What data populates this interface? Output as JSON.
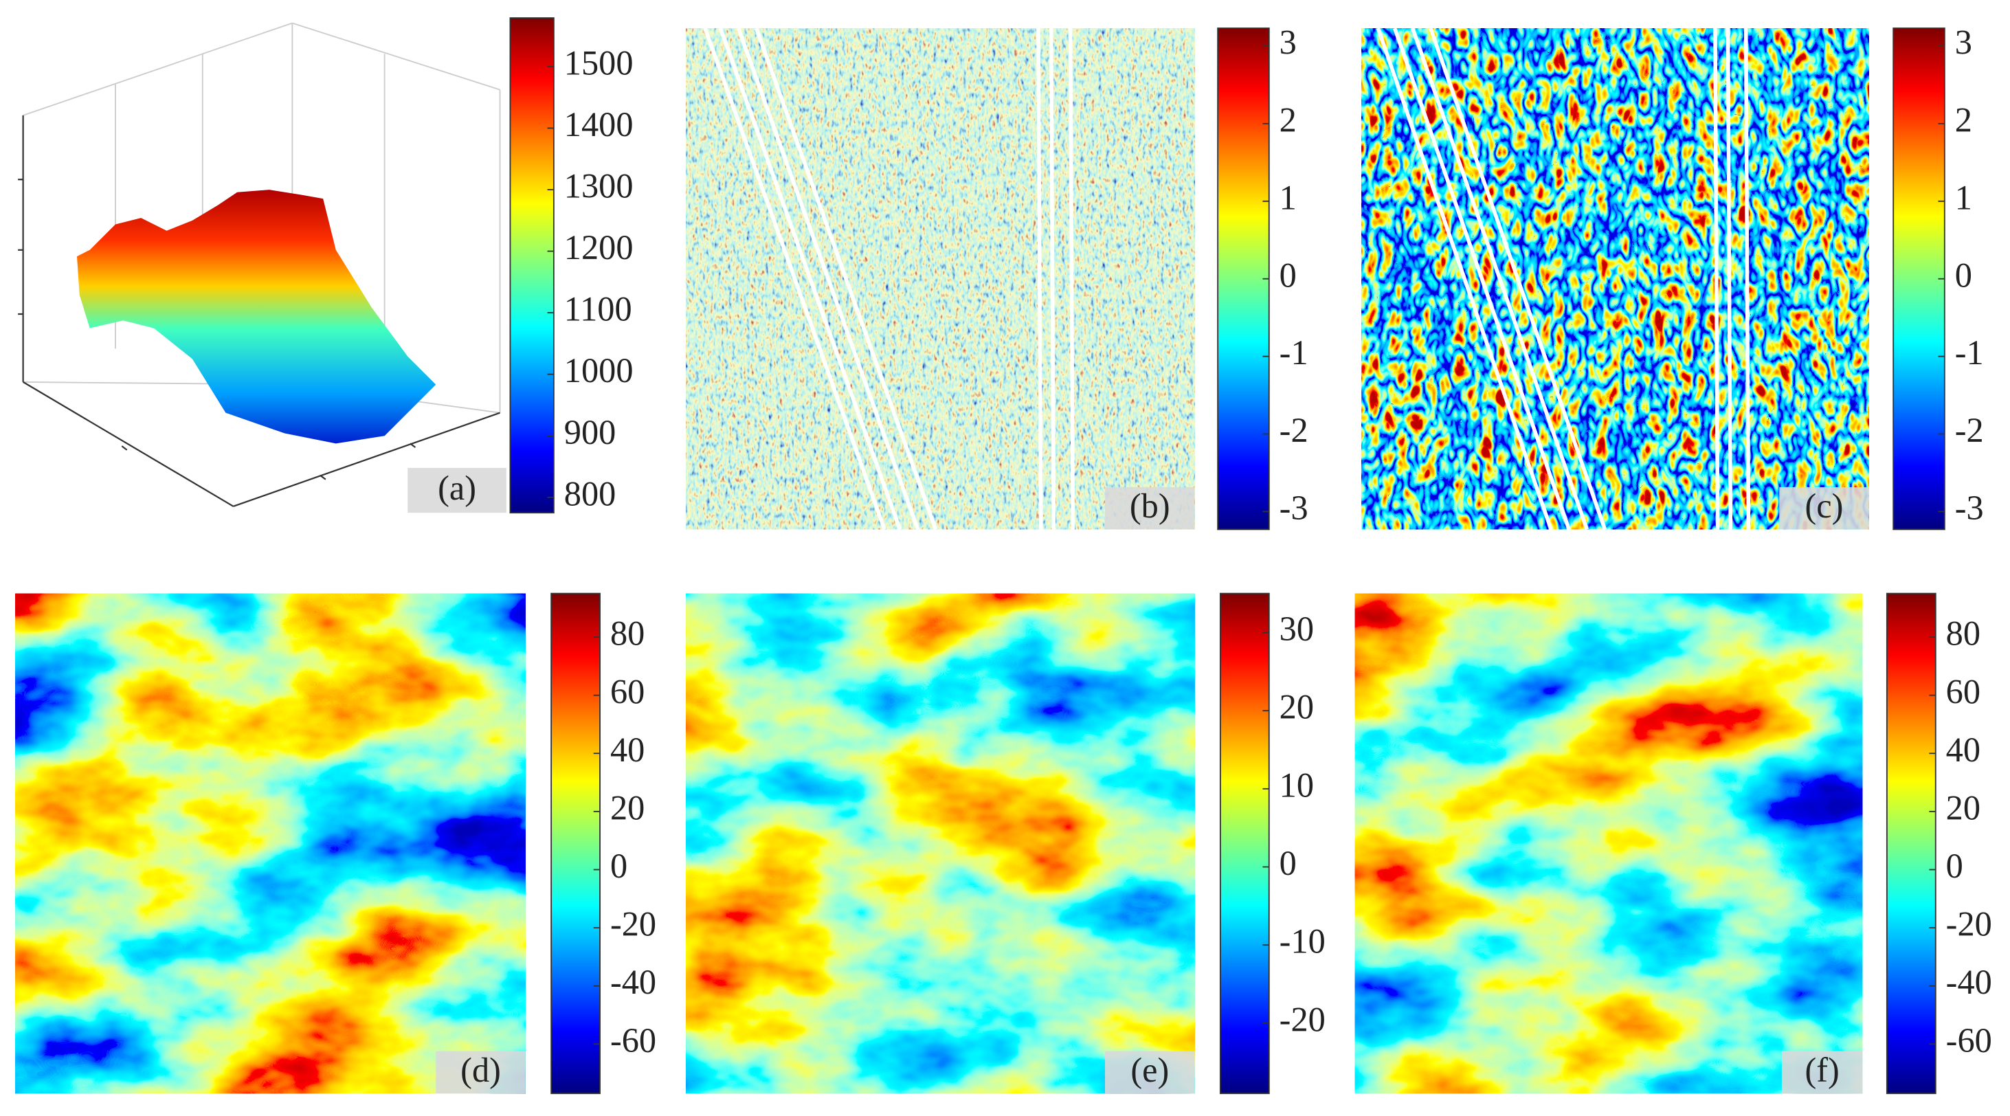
{
  "panels": [
    {
      "label": "(a)",
      "colorbar": {
        "lim": [
          775,
          1579
        ],
        "ticks": [
          800,
          900,
          1000,
          1100,
          1200,
          1300,
          1400,
          1500
        ]
      }
    },
    {
      "label": "(b)",
      "colorbar": {
        "lim": [
          -3.23,
          3.23
        ],
        "ticks": [
          -3,
          -2,
          -1,
          0,
          1,
          2,
          3
        ]
      }
    },
    {
      "label": "(c)",
      "colorbar": {
        "lim": [
          -3.23,
          3.23
        ],
        "ticks": [
          -3,
          -2,
          -1,
          0,
          1,
          2,
          3
        ]
      }
    },
    {
      "label": "(d)",
      "colorbar": {
        "lim": [
          -77,
          95
        ],
        "ticks": [
          -60,
          -40,
          -20,
          0,
          20,
          40,
          60,
          80
        ]
      }
    },
    {
      "label": "(e)",
      "colorbar": {
        "lim": [
          -29,
          35
        ],
        "ticks": [
          -20,
          -10,
          0,
          10,
          20,
          30
        ]
      }
    },
    {
      "label": "(f)",
      "colorbar": {
        "lim": [
          -77,
          95
        ],
        "ticks": [
          -60,
          -40,
          -20,
          0,
          20,
          40,
          60,
          80
        ]
      }
    }
  ]
}
